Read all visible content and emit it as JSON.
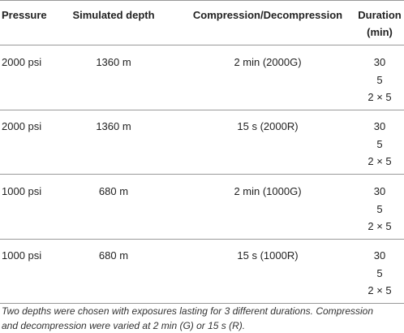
{
  "table": {
    "header": [
      "Pressure",
      "Simulated depth",
      "Compression/Decompression",
      [
        "Duration",
        "(min)"
      ]
    ],
    "rows": [
      [
        "2000 psi",
        "1360 m",
        "2 min (2000G)",
        [
          "30",
          "5",
          "2 × 5"
        ]
      ],
      [
        "2000 psi",
        "1360 m",
        "15 s (2000R)",
        [
          "30",
          "5",
          "2 × 5"
        ]
      ],
      [
        "1000 psi",
        "680 m",
        "2 min (1000G)",
        [
          "30",
          "5",
          "2 × 5"
        ]
      ],
      [
        "1000 psi",
        "680 m",
        "15 s (1000R)",
        [
          "30",
          "5",
          "2 × 5"
        ]
      ]
    ],
    "footnote": [
      "Two depths were chosen with exposures lasting for 3 different durations. Compression",
      "and decompression were varied at 2 min (G) or 15 s (R)."
    ]
  }
}
